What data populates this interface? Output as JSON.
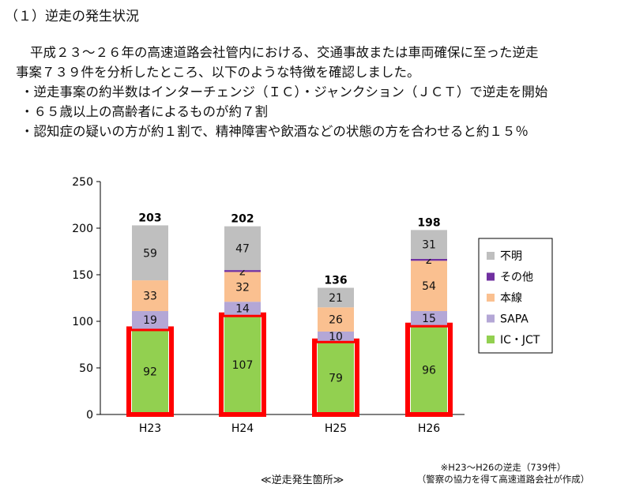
{
  "heading": "（１）逆走の発生状況",
  "paragraph": {
    "line1": "平成２３～２６年の高速道路会社管内における、交通事故または車両確保に至った逆走",
    "line2": "事案７３９件を分析したところ、以下のような特徴を確認しました。"
  },
  "bullets": [
    "・逆走事案の約半数はインターチェンジ（ＩＣ）・ジャンクション（ＪＣＴ）で逆走を開始",
    "・６５歳以上の高齢者によるものが約７割",
    "・認知症の疑いの方が約１割で、精神障害や飲酒などの状態の方を合わせると約１５％"
  ],
  "chart_data": {
    "type": "bar",
    "stacked": true,
    "categories": [
      "H23",
      "H24",
      "H25",
      "H26"
    ],
    "totals": [
      "203",
      "202",
      "136",
      "198"
    ],
    "series": [
      {
        "name": "IC・JCT",
        "values": [
          92,
          107,
          79,
          96
        ],
        "color": "#92d050",
        "highlighted": true
      },
      {
        "name": "SAPA",
        "values": [
          19,
          14,
          10,
          15
        ],
        "color": "#b4a7d6"
      },
      {
        "name": "本線",
        "values": [
          33,
          32,
          26,
          54
        ],
        "color": "#fac090"
      },
      {
        "name": "その他",
        "values": [
          0,
          2,
          0,
          2
        ],
        "color": "#7030a0"
      },
      {
        "name": "不明",
        "values": [
          59,
          47,
          21,
          31
        ],
        "color": "#bfbfbf"
      }
    ],
    "legend_order": [
      "不明",
      "その他",
      "本線",
      "SAPA",
      "IC・JCT"
    ],
    "highlight_color": "#ff0000",
    "ylim": [
      0,
      250
    ],
    "yticks": [
      0,
      50,
      100,
      150,
      200,
      250
    ],
    "legend_position": "right",
    "grid": false
  },
  "caption": "≪逆走発生箇所≫",
  "note": {
    "line1": "※H23～H26の逆走（739件）",
    "line2": "（警察の協力を得て高速道路会社が作成）"
  }
}
